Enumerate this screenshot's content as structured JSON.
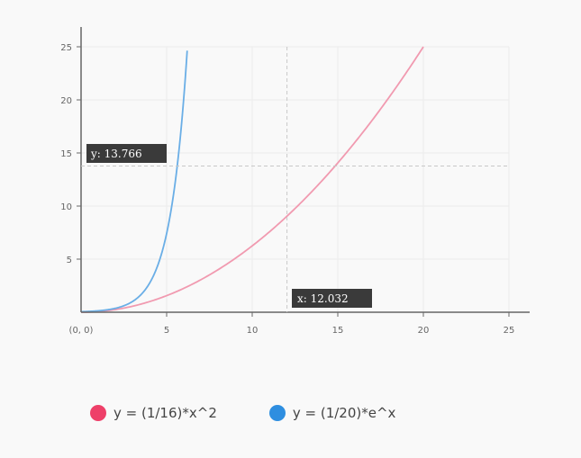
{
  "chart_data": {
    "type": "line",
    "xlim": [
      0,
      25
    ],
    "ylim": [
      0,
      25
    ],
    "x_ticks": [
      5,
      10,
      15,
      20,
      25
    ],
    "y_ticks": [
      5,
      10,
      15,
      20,
      25
    ],
    "origin_label": "(0, 0)",
    "grid": true,
    "legend_position": "bottom-left",
    "series": [
      {
        "name": "y = (1/16)*x^2",
        "color": "#f19ab0",
        "legend_color": "#ee4069",
        "function": "x^2/16",
        "x": [
          0,
          2,
          4,
          6,
          8,
          10,
          12,
          14,
          16,
          18,
          20
        ],
        "y": [
          0,
          0.25,
          1,
          2.25,
          4,
          6.25,
          9,
          12.25,
          16,
          20.25,
          25
        ]
      },
      {
        "name": "y = (1/20)*e^x",
        "color": "#6aaee6",
        "legend_color": "#2e8ee0",
        "function": "e^x/20",
        "x": [
          0,
          1,
          2,
          3,
          4,
          4.5,
          5,
          5.5,
          6,
          6.2
        ],
        "y": [
          0.05,
          0.136,
          0.369,
          1.004,
          2.73,
          4.5,
          7.42,
          12.23,
          20.17,
          24.64
        ]
      }
    ],
    "crosshair": {
      "x": 12.032,
      "y": 13.766
    },
    "tooltips": {
      "x_label": "x: 12.032",
      "y_label": "y: 13.766"
    }
  }
}
